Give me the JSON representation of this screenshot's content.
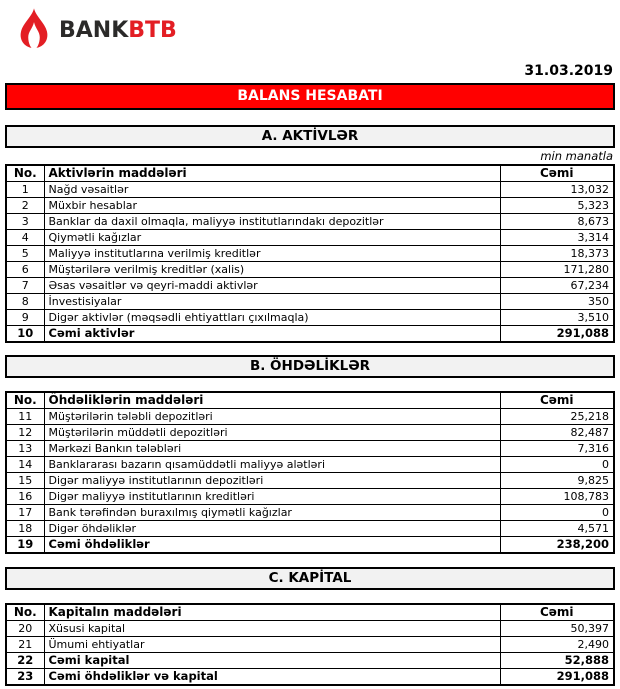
{
  "header": {
    "logo": {
      "bank": "BANK",
      "btb": "BTB"
    },
    "date": "31.03.2019"
  },
  "banner": {
    "title": "BALANS HESABATI"
  },
  "colors": {
    "banner_bg": "#ff0000",
    "logo_red": "#e31e24",
    "logo_dark": "#2b2a29",
    "section_bg": "#f2f2f2"
  },
  "sections": [
    {
      "title": "A. AKTİVLƏR",
      "note": "min manatla",
      "columns": {
        "no": "No.",
        "item": "Aktivlərin maddələri",
        "total": "Cəmi"
      },
      "rows": [
        {
          "no": "1",
          "label": "Nağd vəsaitlər",
          "value": "13,032",
          "bold": false
        },
        {
          "no": "2",
          "label": "Müxbir hesablar",
          "value": "5,323",
          "bold": false
        },
        {
          "no": "3",
          "label": "Banklar da daxil olmaqla, maliyyə institutlarındakı depozitlər",
          "value": "8,673",
          "bold": false
        },
        {
          "no": "4",
          "label": "Qiymətli kağızlar",
          "value": "3,314",
          "bold": false
        },
        {
          "no": "5",
          "label": "Maliyyə institutlarına verilmiş kreditlər",
          "value": "18,373",
          "bold": false
        },
        {
          "no": "6",
          "label": "Müştərilərə verilmiş kreditlər (xalis)",
          "value": "171,280",
          "bold": false
        },
        {
          "no": "7",
          "label": "Əsas vəsaitlər və qeyri-maddi aktivlər",
          "value": "67,234",
          "bold": false
        },
        {
          "no": "8",
          "label": "İnvestisiyalar",
          "value": "350",
          "bold": false
        },
        {
          "no": "9",
          "label": "Digər aktivlər (məqsədli ehtiyattları çıxılmaqla)",
          "value": "3,510",
          "bold": false
        },
        {
          "no": "10",
          "label": "Cəmi aktivlər",
          "value": "291,088",
          "bold": true
        }
      ]
    },
    {
      "title": "B. ÖHDƏLİKLƏR",
      "columns": {
        "no": "No.",
        "item": "Öhdəliklərin maddələri",
        "total": "Cəmi"
      },
      "rows": [
        {
          "no": "11",
          "label": "Müştərilərin tələbli depozitləri",
          "value": "25,218",
          "bold": false
        },
        {
          "no": "12",
          "label": "Müştərilərin müddətli depozitləri",
          "value": "82,487",
          "bold": false
        },
        {
          "no": "13",
          "label": "Mərkəzi Bankın tələbləri",
          "value": "7,316",
          "bold": false
        },
        {
          "no": "14",
          "label": "Banklararası bazarın qısamüddətli maliyyə alətləri",
          "value": "0",
          "bold": false
        },
        {
          "no": "15",
          "label": "Digər maliyyə institutlarının depozitləri",
          "value": "9,825",
          "bold": false
        },
        {
          "no": "16",
          "label": "Digər maliyyə institutlarının kreditləri",
          "value": "108,783",
          "bold": false
        },
        {
          "no": "17",
          "label": "Bank tərəfindən buraxılmış qiymətli kağızlar",
          "value": "0",
          "bold": false
        },
        {
          "no": "18",
          "label": "Digər öhdəliklər",
          "value": "4,571",
          "bold": false
        },
        {
          "no": "19",
          "label": "Cəmi öhdəliklər",
          "value": "238,200",
          "bold": true
        }
      ]
    },
    {
      "title": "C. KAPİTAL",
      "columns": {
        "no": "No.",
        "item": "Kapitalın maddələri",
        "total": "Cəmi"
      },
      "rows": [
        {
          "no": "20",
          "label": "Xüsusi kapital",
          "value": "50,397",
          "bold": false
        },
        {
          "no": "21",
          "label": "Ümumi ehtiyatlar",
          "value": "2,490",
          "bold": false
        },
        {
          "no": "22",
          "label": "Cəmi kapital",
          "value": "52,888",
          "bold": true
        },
        {
          "no": "23",
          "label": "Cəmi öhdəliklər və kapital",
          "value": "291,088",
          "bold": true
        }
      ]
    }
  ]
}
